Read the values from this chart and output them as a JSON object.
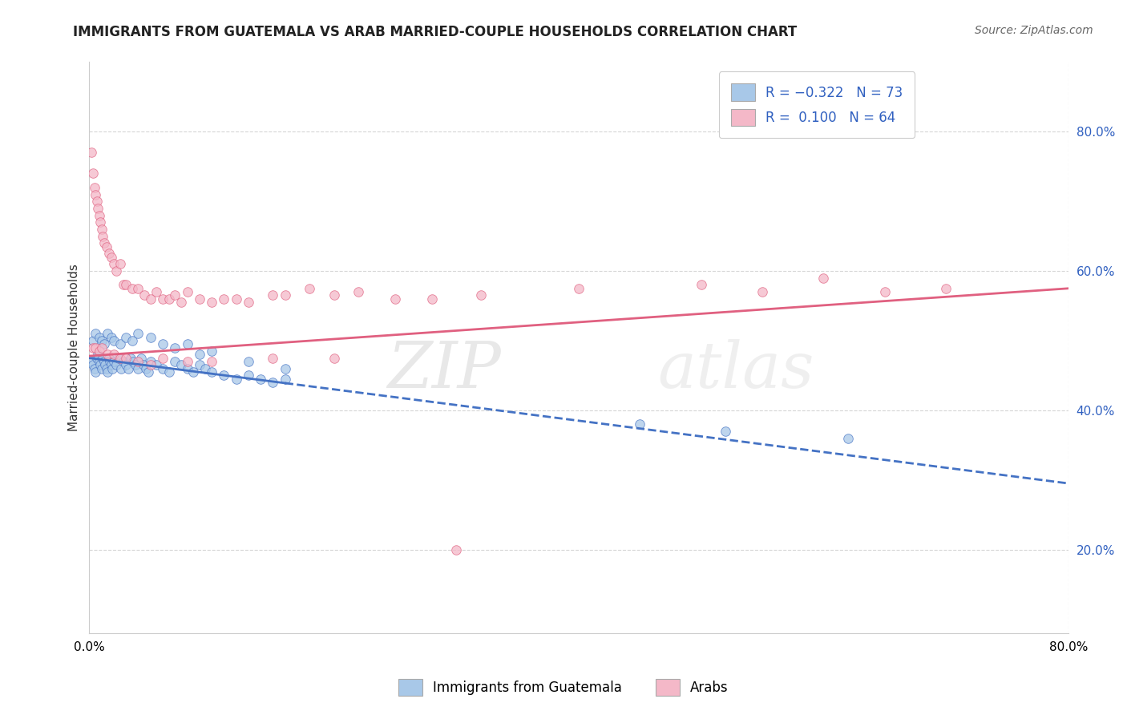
{
  "title": "IMMIGRANTS FROM GUATEMALA VS ARAB MARRIED-COUPLE HOUSEHOLDS CORRELATION CHART",
  "source": "Source: ZipAtlas.com",
  "ylabel": "Married-couple Households",
  "color_blue": "#a8c8e8",
  "color_pink": "#f4b8c8",
  "line_blue": "#4472c4",
  "line_pink": "#e06080",
  "xlim": [
    0.0,
    0.8
  ],
  "ylim": [
    0.08,
    0.9
  ],
  "blue_scatter_x": [
    0.002,
    0.003,
    0.004,
    0.005,
    0.006,
    0.007,
    0.008,
    0.009,
    0.01,
    0.011,
    0.012,
    0.013,
    0.014,
    0.015,
    0.016,
    0.017,
    0.018,
    0.019,
    0.02,
    0.022,
    0.024,
    0.026,
    0.028,
    0.03,
    0.032,
    0.034,
    0.036,
    0.038,
    0.04,
    0.042,
    0.044,
    0.046,
    0.048,
    0.05,
    0.055,
    0.06,
    0.065,
    0.07,
    0.075,
    0.08,
    0.085,
    0.09,
    0.095,
    0.1,
    0.11,
    0.12,
    0.13,
    0.14,
    0.15,
    0.16,
    0.003,
    0.005,
    0.008,
    0.01,
    0.012,
    0.015,
    0.018,
    0.02,
    0.025,
    0.03,
    0.035,
    0.04,
    0.05,
    0.06,
    0.07,
    0.08,
    0.09,
    0.1,
    0.13,
    0.16,
    0.45,
    0.52,
    0.62
  ],
  "blue_scatter_y": [
    0.47,
    0.465,
    0.46,
    0.455,
    0.475,
    0.48,
    0.47,
    0.465,
    0.46,
    0.475,
    0.47,
    0.465,
    0.46,
    0.455,
    0.475,
    0.47,
    0.465,
    0.46,
    0.47,
    0.465,
    0.475,
    0.46,
    0.47,
    0.465,
    0.46,
    0.475,
    0.47,
    0.465,
    0.46,
    0.475,
    0.465,
    0.46,
    0.455,
    0.47,
    0.465,
    0.46,
    0.455,
    0.47,
    0.465,
    0.46,
    0.455,
    0.465,
    0.46,
    0.455,
    0.45,
    0.445,
    0.45,
    0.445,
    0.44,
    0.445,
    0.5,
    0.51,
    0.505,
    0.5,
    0.495,
    0.51,
    0.505,
    0.5,
    0.495,
    0.505,
    0.5,
    0.51,
    0.505,
    0.495,
    0.49,
    0.495,
    0.48,
    0.485,
    0.47,
    0.46,
    0.38,
    0.37,
    0.36
  ],
  "pink_scatter_x": [
    0.002,
    0.003,
    0.004,
    0.005,
    0.006,
    0.007,
    0.008,
    0.009,
    0.01,
    0.011,
    0.012,
    0.014,
    0.016,
    0.018,
    0.02,
    0.022,
    0.025,
    0.028,
    0.03,
    0.035,
    0.04,
    0.045,
    0.05,
    0.055,
    0.06,
    0.065,
    0.07,
    0.075,
    0.08,
    0.09,
    0.1,
    0.11,
    0.12,
    0.13,
    0.15,
    0.16,
    0.18,
    0.2,
    0.22,
    0.25,
    0.28,
    0.32,
    0.4,
    0.5,
    0.55,
    0.6,
    0.65,
    0.7,
    0.003,
    0.005,
    0.008,
    0.01,
    0.015,
    0.02,
    0.025,
    0.03,
    0.04,
    0.05,
    0.06,
    0.08,
    0.1,
    0.15,
    0.2,
    0.3
  ],
  "pink_scatter_y": [
    0.77,
    0.74,
    0.72,
    0.71,
    0.7,
    0.69,
    0.68,
    0.67,
    0.66,
    0.65,
    0.64,
    0.635,
    0.625,
    0.62,
    0.61,
    0.6,
    0.61,
    0.58,
    0.58,
    0.575,
    0.575,
    0.565,
    0.56,
    0.57,
    0.56,
    0.56,
    0.565,
    0.555,
    0.57,
    0.56,
    0.555,
    0.56,
    0.56,
    0.555,
    0.565,
    0.565,
    0.575,
    0.565,
    0.57,
    0.56,
    0.56,
    0.565,
    0.575,
    0.58,
    0.57,
    0.59,
    0.57,
    0.575,
    0.49,
    0.49,
    0.485,
    0.49,
    0.48,
    0.48,
    0.475,
    0.475,
    0.47,
    0.465,
    0.475,
    0.47,
    0.47,
    0.475,
    0.475,
    0.2
  ],
  "blue_line_x0": 0.0,
  "blue_line_x_solid_end": 0.16,
  "blue_line_x1": 0.8,
  "blue_line_y0": 0.475,
  "blue_line_y1": 0.295,
  "pink_line_x0": 0.0,
  "pink_line_x1": 0.8,
  "pink_line_y0": 0.478,
  "pink_line_y1": 0.575
}
